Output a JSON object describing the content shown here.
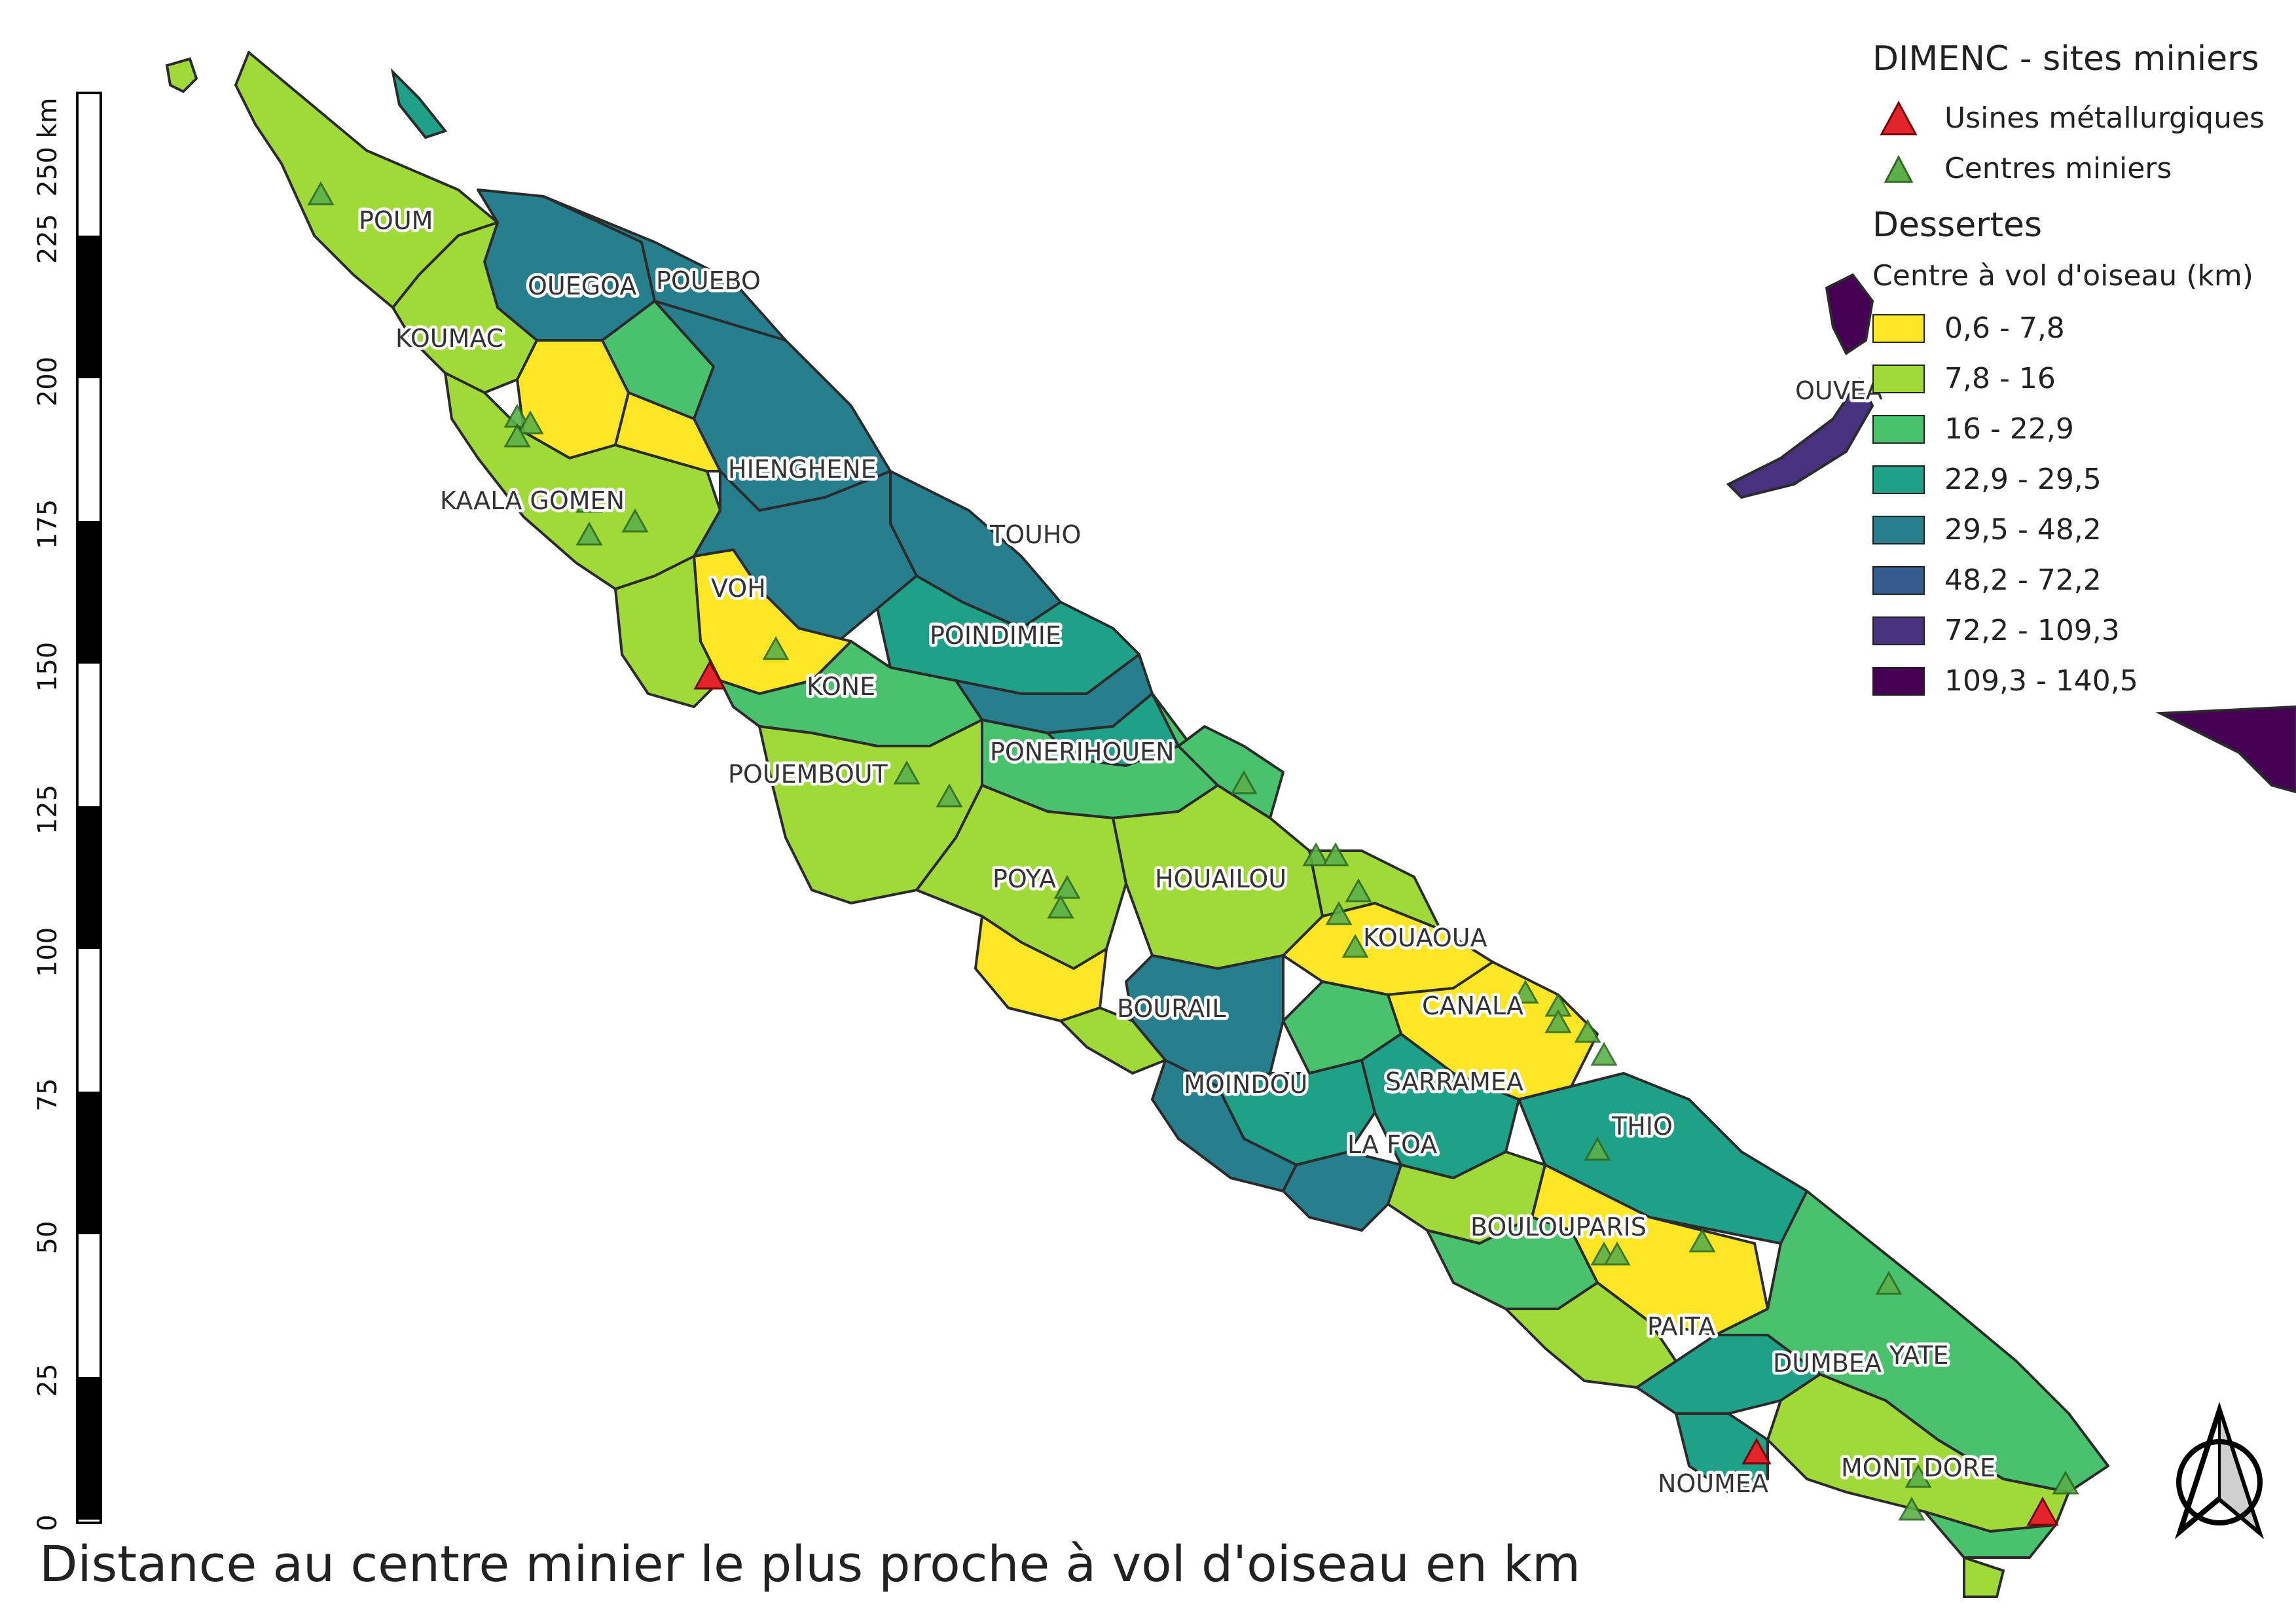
{
  "title": "Distance au centre minier le plus proche à vol d'oiseau en km",
  "legend": {
    "sites_title": "DIMENC - sites miniers",
    "sites": [
      {
        "label": "Usines métallurgiques",
        "color": "#e3242b",
        "icon": "red-triangle"
      },
      {
        "label": "Centres miniers",
        "color": "#5bb04a",
        "icon": "green-triangle"
      }
    ],
    "dessertes_title": "Dessertes",
    "classes_title": "Centre à vol d'oiseau (km)",
    "classes": [
      {
        "label": "0,6 - 7,8",
        "color": "#fde725"
      },
      {
        "label": "7,8 - 16",
        "color": "#a0da39"
      },
      {
        "label": "16 - 22,9",
        "color": "#4ac16d"
      },
      {
        "label": "22,9 - 29,5",
        "color": "#1fa187"
      },
      {
        "label": "29,5 - 48,2",
        "color": "#277f8e"
      },
      {
        "label": "48,2 - 72,2",
        "color": "#365c8d"
      },
      {
        "label": "72,2 - 109,3",
        "color": "#46327e"
      },
      {
        "label": "109,3 - 140,5",
        "color": "#440154"
      }
    ]
  },
  "scale_bar": {
    "unit_label": "250 km",
    "ticks": [
      "0",
      "25",
      "50",
      "75",
      "100",
      "125",
      "150",
      "175",
      "200",
      "225"
    ]
  },
  "communes": [
    "POUM",
    "OUEGOA",
    "POUEBO",
    "KOUMAC",
    "HIENGHENE",
    "KAALA GOMEN",
    "TOUHO",
    "VOH",
    "POINDIMIE",
    "KONE",
    "PONERIHOUEN",
    "POUEMBOUT",
    "POYA",
    "HOUAILOU",
    "KOUAOUA",
    "CANALA",
    "BOURAIL",
    "MOINDOU",
    "SARRAMEA",
    "THIO",
    "LA FOA",
    "BOULOUPARIS",
    "PAITA",
    "DUMBEA",
    "YATE",
    "NOUMEA",
    "MONT DORE",
    "OUVEA"
  ],
  "north_arrow": "north-arrow-icon"
}
